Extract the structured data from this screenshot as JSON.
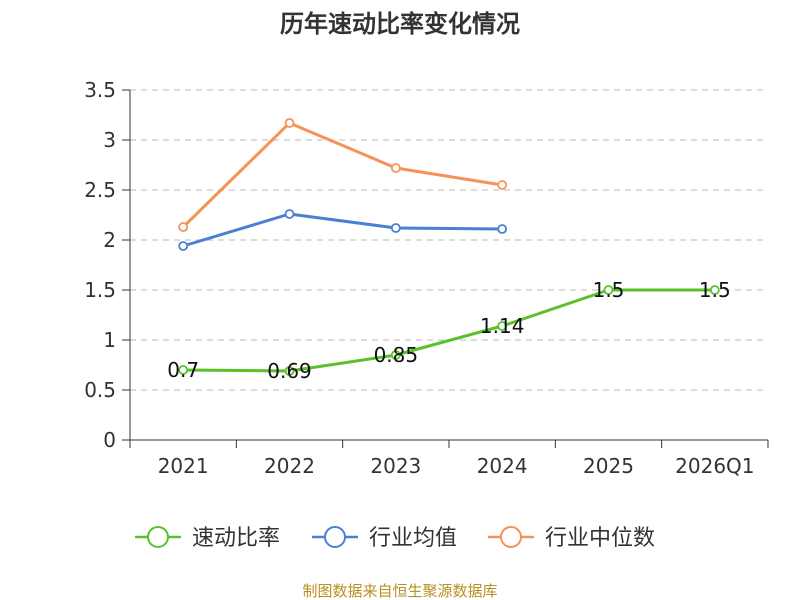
{
  "chart_data": {
    "type": "line",
    "title": "历年速动比率变化情况",
    "categories": [
      "2021",
      "2022",
      "2023",
      "2024",
      "2025",
      "2026Q1"
    ],
    "ylim": [
      0,
      3.5
    ],
    "yticks": [
      "0",
      "0.5",
      "1",
      "1.5",
      "2",
      "2.5",
      "3",
      "3.5"
    ],
    "grid": true,
    "legend_position": "bottom",
    "series": [
      {
        "name": "速动比率",
        "color": "#5ac12a",
        "values": [
          0.7,
          0.69,
          0.85,
          1.14,
          1.5,
          1.5
        ],
        "labels": [
          "0.7",
          "0.69",
          "0.85",
          "1.14",
          "1.5",
          "1.5"
        ]
      },
      {
        "name": "行业均值",
        "color": "#4a7fd6",
        "values": [
          1.94,
          2.26,
          2.12,
          2.11,
          null,
          null
        ]
      },
      {
        "name": "行业中位数",
        "color": "#f5925a",
        "values": [
          2.13,
          3.17,
          2.72,
          2.55,
          null,
          null
        ]
      }
    ]
  },
  "footer": "制图数据来自恒生聚源数据库"
}
